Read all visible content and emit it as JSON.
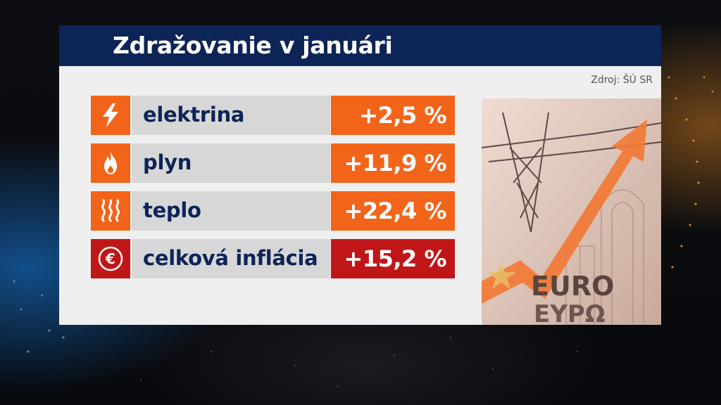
{
  "title": "Zdražovanie v januári",
  "source": "Zdroj: ŠÚ SR",
  "colors": {
    "header": "#0d2456",
    "accent_orange": "#f26419",
    "accent_red": "#c01618"
  },
  "rows": [
    {
      "icon": "lightning-icon",
      "label": "elektrina",
      "value": "+2,5 %"
    },
    {
      "icon": "flame-icon",
      "label": "plyn",
      "value": "+11,9 %"
    },
    {
      "icon": "heat-waves-icon",
      "label": "teplo",
      "value": "+22,4 %"
    },
    {
      "icon": "euro-icon",
      "label": "celková inflácia",
      "value": "+15,2 %"
    }
  ],
  "photo_text": {
    "line1": "EURO",
    "line2": "ΕΥΡΩ"
  }
}
